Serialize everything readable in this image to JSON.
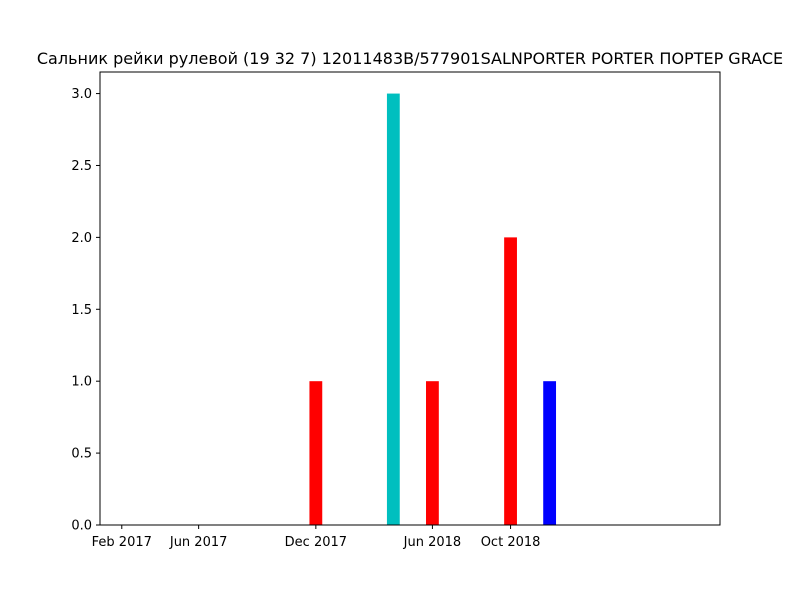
{
  "chart_data": {
    "type": "bar",
    "title": "Сальник рейки рулевой (19 32 7) 12011483B/577901SALNPORTER PORTER ПОРТЕР GRACE",
    "xlabel": "",
    "ylabel": "",
    "x_axis_type": "date",
    "xlim": [
      "2016-12-29",
      "2019-08-24"
    ],
    "ylim": [
      0,
      3.15
    ],
    "x_ticks": [
      {
        "date": "2017-02-01",
        "label": "Feb 2017"
      },
      {
        "date": "2017-06-01",
        "label": "Jun 2017"
      },
      {
        "date": "2017-12-01",
        "label": "Dec 2017"
      },
      {
        "date": "2018-06-01",
        "label": "Jun 2018"
      },
      {
        "date": "2018-10-01",
        "label": "Oct 2018"
      }
    ],
    "y_ticks": [
      {
        "value": 0.0,
        "label": "0.0"
      },
      {
        "value": 0.5,
        "label": "0.5"
      },
      {
        "value": 1.0,
        "label": "1.0"
      },
      {
        "value": 1.5,
        "label": "1.5"
      },
      {
        "value": 2.0,
        "label": "2.0"
      },
      {
        "value": 2.5,
        "label": "2.5"
      },
      {
        "value": 3.0,
        "label": "3.0"
      }
    ],
    "grid": false,
    "legend": false,
    "bar_width_days": 20,
    "bars": [
      {
        "x": "2017-12-01",
        "value": 1,
        "color": "#ff0000"
      },
      {
        "x": "2018-04-01",
        "value": 3,
        "color": "#00bfbf"
      },
      {
        "x": "2018-06-01",
        "value": 1,
        "color": "#ff0000"
      },
      {
        "x": "2018-10-01",
        "value": 2,
        "color": "#ff0000"
      },
      {
        "x": "2018-12-01",
        "value": 1,
        "color": "#0000ff"
      }
    ]
  }
}
